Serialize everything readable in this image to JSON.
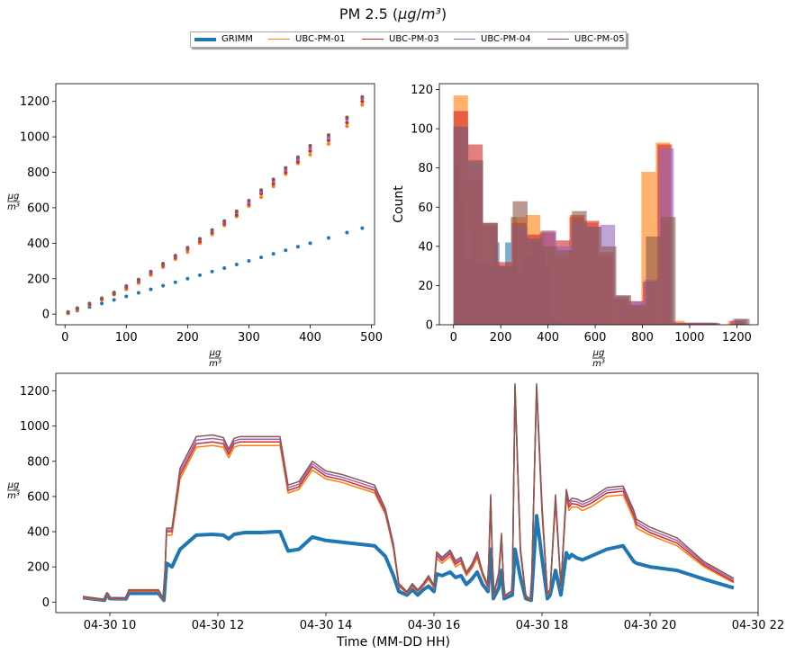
{
  "figure": {
    "title": "PM 2.5 (μg/m³)",
    "legend": [
      {
        "name": "GRIMM",
        "color": "#1f77b4",
        "width": 4
      },
      {
        "name": "UBC-PM-01",
        "color": "#ff7f0e",
        "width": 1.5
      },
      {
        "name": "UBC-PM-03",
        "color": "#d62728",
        "width": 1.5
      },
      {
        "name": "UBC-PM-04",
        "color": "#9467bd",
        "width": 1.5
      },
      {
        "name": "UBC-PM-05",
        "color": "#8c564b",
        "width": 1.5
      }
    ]
  },
  "chart_data": [
    {
      "type": "scatter",
      "xlabel": "μg/m³",
      "ylabel": "μg/m³",
      "xlim": [
        -15,
        505
      ],
      "ylim": [
        -60,
        1300
      ],
      "xticks": [
        0,
        100,
        200,
        300,
        400,
        500
      ],
      "yticks": [
        0,
        200,
        400,
        600,
        800,
        1000,
        1200
      ],
      "series": [
        {
          "name": "GRIMM",
          "color": "#1f77b4",
          "x": [
            5,
            20,
            40,
            60,
            80,
            100,
            120,
            140,
            160,
            180,
            200,
            220,
            240,
            260,
            280,
            300,
            320,
            340,
            360,
            380,
            400,
            430,
            460,
            485
          ],
          "y": [
            5,
            20,
            40,
            60,
            80,
            100,
            120,
            140,
            160,
            180,
            200,
            220,
            240,
            260,
            280,
            300,
            320,
            340,
            360,
            380,
            400,
            430,
            460,
            485
          ]
        },
        {
          "name": "UBC-PM-01",
          "color": "#ff7f0e",
          "x": [
            5,
            20,
            40,
            60,
            80,
            100,
            120,
            140,
            160,
            180,
            200,
            220,
            240,
            260,
            280,
            300,
            320,
            340,
            360,
            380,
            400,
            430,
            460,
            485
          ],
          "y": [
            5,
            25,
            50,
            80,
            110,
            140,
            175,
            220,
            265,
            310,
            350,
            400,
            450,
            500,
            550,
            610,
            660,
            720,
            790,
            850,
            900,
            960,
            1060,
            1180
          ]
        },
        {
          "name": "UBC-PM-03",
          "color": "#d62728",
          "x": [
            5,
            20,
            40,
            60,
            80,
            100,
            120,
            140,
            160,
            180,
            200,
            220,
            240,
            260,
            280,
            300,
            320,
            340,
            360,
            380,
            400,
            430,
            460,
            485
          ],
          "y": [
            8,
            30,
            55,
            85,
            115,
            150,
            185,
            230,
            275,
            320,
            365,
            410,
            460,
            510,
            560,
            620,
            680,
            735,
            800,
            860,
            920,
            980,
            1080,
            1200
          ]
        },
        {
          "name": "UBC-PM-04",
          "color": "#9467bd",
          "x": [
            5,
            20,
            40,
            60,
            80,
            100,
            120,
            140,
            160,
            180,
            200,
            220,
            240,
            260,
            280,
            300,
            320,
            340,
            360,
            380,
            400,
            430,
            460,
            485
          ],
          "y": [
            10,
            32,
            58,
            88,
            120,
            155,
            190,
            235,
            280,
            325,
            370,
            420,
            470,
            520,
            575,
            630,
            690,
            750,
            815,
            875,
            935,
            995,
            1100,
            1215
          ]
        },
        {
          "name": "UBC-PM-05",
          "color": "#8c564b",
          "x": [
            5,
            20,
            40,
            60,
            80,
            100,
            120,
            140,
            160,
            180,
            200,
            220,
            240,
            260,
            280,
            300,
            320,
            340,
            360,
            380,
            400,
            430,
            460,
            485
          ],
          "y": [
            12,
            34,
            60,
            90,
            122,
            158,
            195,
            240,
            285,
            330,
            375,
            425,
            475,
            525,
            580,
            640,
            700,
            760,
            825,
            885,
            950,
            1010,
            1110,
            1225
          ]
        }
      ]
    },
    {
      "type": "bar",
      "xlabel": "μg/m³",
      "ylabel": "Count",
      "xlim": [
        -60,
        1290
      ],
      "ylim": [
        0,
        123
      ],
      "xticks": [
        0,
        200,
        400,
        600,
        800,
        1000,
        1200
      ],
      "yticks": [
        0,
        20,
        40,
        60,
        80,
        100,
        120
      ],
      "series": [
        {
          "name": "GRIMM",
          "color": "#1f77b4",
          "bin_start": 0,
          "bin_width": 24.3,
          "counts": [
            82,
            62,
            33,
            49,
            32,
            32,
            28,
            42,
            30,
            42,
            55,
            26,
            32,
            35,
            42,
            47,
            30,
            3,
            2,
            1
          ]
        },
        {
          "name": "UBC-PM-01",
          "color": "#ff7f0e",
          "bin_start": 0,
          "bin_width": 61.2,
          "counts": [
            117,
            74,
            50,
            30,
            55,
            56,
            48,
            34,
            55,
            52,
            35,
            13,
            10,
            78,
            93,
            2,
            1,
            1,
            0,
            2
          ]
        },
        {
          "name": "UBC-PM-03",
          "color": "#d62728",
          "bin_start": 0,
          "bin_width": 61.7,
          "counts": [
            109,
            92,
            52,
            32,
            52,
            46,
            47,
            43,
            56,
            53,
            37,
            14,
            12,
            22,
            92,
            1,
            1,
            1,
            0,
            2
          ]
        },
        {
          "name": "UBC-PM-04",
          "color": "#9467bd",
          "bin_start": 0,
          "bin_width": 62.2,
          "counts": [
            101,
            83,
            51,
            30,
            50,
            44,
            48,
            40,
            53,
            50,
            51,
            15,
            12,
            23,
            90,
            1,
            1,
            1,
            0,
            3
          ]
        },
        {
          "name": "UBC-PM-05",
          "color": "#8c564b",
          "bin_start": 0,
          "bin_width": 62.7,
          "counts": [
            101,
            84,
            52,
            30,
            63,
            44,
            40,
            38,
            58,
            50,
            40,
            15,
            10,
            45,
            55,
            1,
            1,
            1,
            0,
            3
          ]
        }
      ]
    },
    {
      "type": "line",
      "xlabel": "Time (MM-DD HH)",
      "ylabel": "μg/m³",
      "xlim": [
        9.0,
        22.0
      ],
      "ylim": [
        -60,
        1300
      ],
      "xticks": [
        10,
        12,
        14,
        16,
        18,
        20,
        22
      ],
      "xticklabels": [
        "04-30 10",
        "04-30 12",
        "04-30 14",
        "04-30 16",
        "04-30 18",
        "04-30 20",
        "04-30 22"
      ],
      "yticks": [
        0,
        200,
        400,
        600,
        800,
        1000,
        1200
      ],
      "x": [
        9.5,
        9.9,
        9.95,
        10.0,
        10.3,
        10.35,
        10.9,
        11.0,
        11.05,
        11.15,
        11.3,
        11.6,
        11.9,
        12.1,
        12.2,
        12.3,
        12.4,
        12.5,
        12.8,
        13.1,
        13.15,
        13.3,
        13.5,
        13.75,
        14.0,
        14.3,
        14.6,
        14.9,
        15.1,
        15.25,
        15.35,
        15.5,
        15.6,
        15.7,
        15.8,
        15.9,
        16.0,
        16.05,
        16.15,
        16.3,
        16.4,
        16.5,
        16.6,
        16.7,
        16.8,
        16.9,
        17.0,
        17.05,
        17.1,
        17.2,
        17.25,
        17.3,
        17.45,
        17.5,
        17.6,
        17.7,
        17.8,
        17.9,
        18.0,
        18.1,
        18.15,
        18.25,
        18.35,
        18.45,
        18.5,
        18.55,
        18.65,
        18.75,
        18.9,
        19.2,
        19.5,
        19.7,
        19.75,
        20.0,
        20.5,
        21.0,
        21.55
      ],
      "series": [
        {
          "name": "GRIMM",
          "color": "#1f77b4",
          "y": [
            25,
            10,
            45,
            20,
            18,
            50,
            50,
            10,
            220,
            200,
            300,
            380,
            385,
            380,
            360,
            385,
            390,
            395,
            395,
            400,
            400,
            290,
            300,
            370,
            350,
            340,
            330,
            320,
            260,
            150,
            60,
            40,
            70,
            40,
            70,
            90,
            60,
            160,
            150,
            170,
            140,
            150,
            100,
            130,
            170,
            100,
            60,
            300,
            20,
            80,
            180,
            20,
            40,
            300,
            140,
            20,
            10,
            490,
            250,
            20,
            40,
            180,
            40,
            280,
            250,
            270,
            250,
            240,
            260,
            300,
            320,
            230,
            220,
            200,
            180,
            130,
            80
          ]
        },
        {
          "name": "UBC-PM-01",
          "color": "#ff7f0e",
          "y": [
            25,
            10,
            45,
            20,
            18,
            60,
            60,
            10,
            380,
            380,
            700,
            880,
            890,
            880,
            820,
            880,
            890,
            890,
            890,
            890,
            890,
            620,
            640,
            750,
            700,
            680,
            650,
            620,
            500,
            300,
            90,
            50,
            90,
            60,
            90,
            130,
            80,
            250,
            220,
            260,
            200,
            220,
            150,
            190,
            250,
            150,
            80,
            560,
            30,
            150,
            350,
            30,
            60,
            1200,
            280,
            30,
            10,
            1210,
            500,
            40,
            60,
            560,
            80,
            590,
            520,
            540,
            540,
            520,
            540,
            600,
            610,
            470,
            420,
            380,
            320,
            200,
            110
          ]
        },
        {
          "name": "UBC-PM-03",
          "color": "#d62728",
          "y": [
            28,
            12,
            50,
            22,
            20,
            65,
            65,
            12,
            400,
            400,
            720,
            900,
            910,
            900,
            840,
            900,
            910,
            910,
            910,
            910,
            910,
            635,
            655,
            770,
            715,
            695,
            665,
            635,
            510,
            310,
            95,
            55,
            95,
            65,
            95,
            140,
            85,
            265,
            235,
            275,
            215,
            235,
            160,
            200,
            265,
            160,
            85,
            580,
            32,
            160,
            370,
            32,
            62,
            1220,
            290,
            32,
            12,
            1225,
            520,
            45,
            65,
            580,
            85,
            610,
            540,
            560,
            555,
            540,
            560,
            620,
            630,
            490,
            440,
            395,
            335,
            210,
            115
          ]
        },
        {
          "name": "UBC-PM-04",
          "color": "#9467bd",
          "y": [
            30,
            14,
            52,
            24,
            22,
            68,
            68,
            14,
            410,
            410,
            740,
            920,
            930,
            920,
            855,
            915,
            925,
            925,
            925,
            925,
            925,
            650,
            670,
            785,
            730,
            710,
            680,
            650,
            520,
            320,
            100,
            58,
            100,
            68,
            100,
            145,
            90,
            275,
            245,
            285,
            225,
            245,
            165,
            210,
            275,
            165,
            90,
            595,
            34,
            165,
            380,
            34,
            64,
            1230,
            300,
            34,
            14,
            1230,
            535,
            48,
            68,
            595,
            88,
            625,
            555,
            575,
            570,
            555,
            575,
            635,
            645,
            505,
            455,
            410,
            350,
            220,
            125
          ]
        },
        {
          "name": "UBC-PM-05",
          "color": "#8c564b",
          "y": [
            32,
            15,
            54,
            25,
            24,
            70,
            70,
            15,
            420,
            420,
            760,
            940,
            950,
            935,
            870,
            930,
            940,
            940,
            940,
            940,
            940,
            665,
            685,
            800,
            745,
            725,
            695,
            665,
            530,
            330,
            105,
            60,
            105,
            70,
            105,
            150,
            95,
            285,
            255,
            295,
            235,
            255,
            170,
            215,
            285,
            170,
            95,
            610,
            35,
            170,
            390,
            35,
            66,
            1240,
            310,
            35,
            15,
            1240,
            550,
            50,
            70,
            610,
            90,
            640,
            570,
            590,
            585,
            570,
            590,
            650,
            660,
            520,
            470,
            425,
            365,
            230,
            135
          ]
        }
      ]
    }
  ]
}
